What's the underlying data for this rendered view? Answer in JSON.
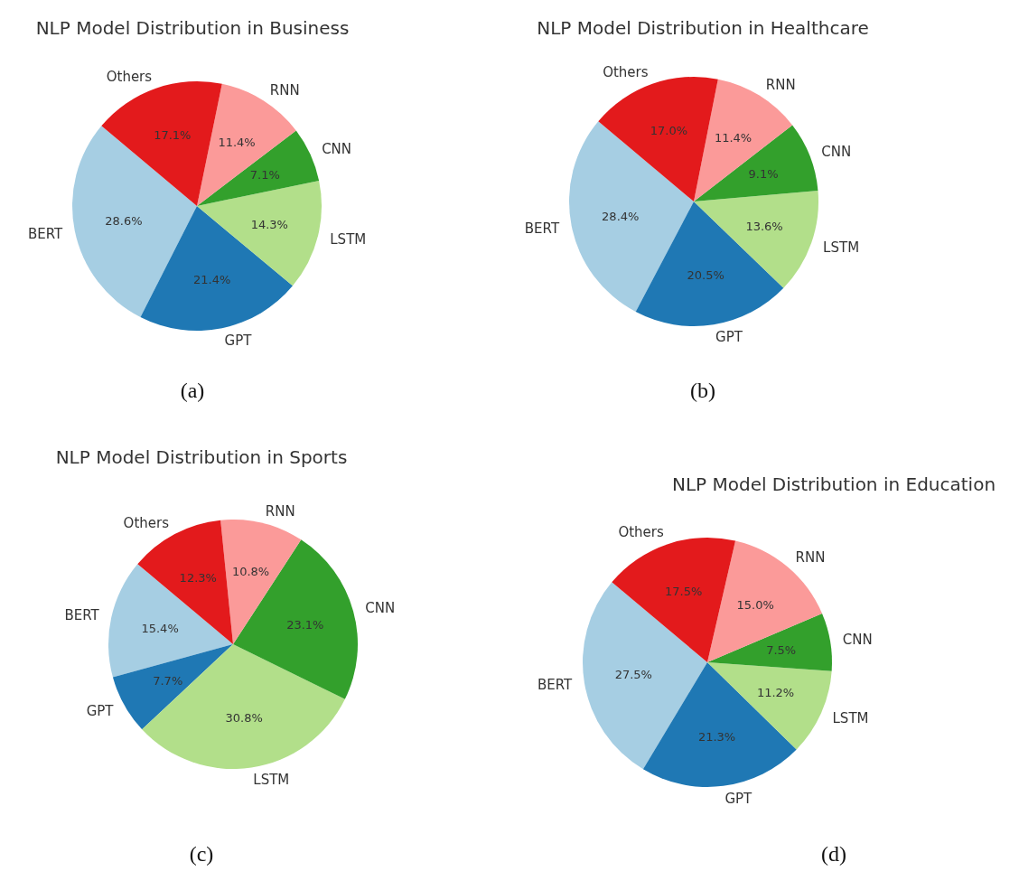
{
  "chart_data": [
    {
      "type": "pie",
      "title": "NLP Model Distribution in Business",
      "categories": [
        "BERT",
        "GPT",
        "LSTM",
        "CNN",
        "RNN",
        "Others"
      ],
      "values": [
        28.6,
        21.4,
        14.3,
        7.1,
        11.4,
        17.1
      ],
      "value_labels": [
        "28.6%",
        "21.4%",
        "14.3%",
        "7.1%",
        "11.4%",
        "17.1%"
      ],
      "colors": [
        "#a6cee3",
        "#1f78b4",
        "#b2df8a",
        "#33a02c",
        "#fb9a99",
        "#e31a1c"
      ],
      "annotations": [
        "(a)"
      ]
    },
    {
      "type": "pie",
      "title": "NLP Model Distribution in Healthcare",
      "categories": [
        "BERT",
        "GPT",
        "LSTM",
        "CNN",
        "RNN",
        "Others"
      ],
      "values": [
        28.4,
        20.5,
        13.6,
        9.1,
        11.4,
        17.0
      ],
      "value_labels": [
        "28.4%",
        "20.5%",
        "13.6%",
        "9.1%",
        "11.4%",
        "17.0%"
      ],
      "colors": [
        "#a6cee3",
        "#1f78b4",
        "#b2df8a",
        "#33a02c",
        "#fb9a99",
        "#e31a1c"
      ],
      "annotations": [
        "(b)"
      ]
    },
    {
      "type": "pie",
      "title": "NLP Model Distribution in Sports",
      "categories": [
        "BERT",
        "GPT",
        "LSTM",
        "CNN",
        "RNN",
        "Others"
      ],
      "values": [
        15.4,
        7.7,
        30.8,
        23.1,
        10.8,
        12.3
      ],
      "value_labels": [
        "15.4%",
        "7.7%",
        "30.8%",
        "23.1%",
        "10.8%",
        "12.3%"
      ],
      "colors": [
        "#a6cee3",
        "#1f78b4",
        "#b2df8a",
        "#33a02c",
        "#fb9a99",
        "#e31a1c"
      ],
      "annotations": [
        "(c)"
      ]
    },
    {
      "type": "pie",
      "title": "NLP Model Distribution in Education",
      "categories": [
        "BERT",
        "GPT",
        "LSTM",
        "CNN",
        "RNN",
        "Others"
      ],
      "values": [
        27.5,
        21.3,
        11.2,
        7.5,
        15.0,
        17.5
      ],
      "value_labels": [
        "27.5%",
        "21.3%",
        "11.2%",
        "7.5%",
        "15.0%",
        "17.5%"
      ],
      "colors": [
        "#a6cee3",
        "#1f78b4",
        "#b2df8a",
        "#33a02c",
        "#fb9a99",
        "#e31a1c"
      ],
      "annotations": [
        "(d)"
      ]
    }
  ]
}
